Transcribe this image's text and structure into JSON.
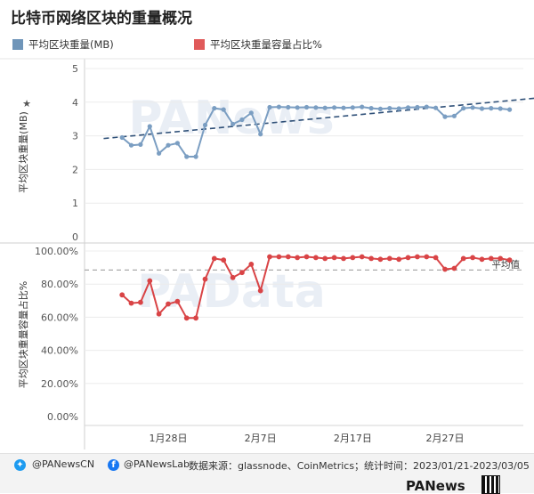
{
  "page": {
    "title": "比特币网络区块的重量概况"
  },
  "legend": [
    {
      "label": "平均区块重量(MB)",
      "color": "#6f95b9"
    },
    {
      "label": "平均区块重量容量占比%",
      "color": "#e05a5a"
    }
  ],
  "colors": {
    "top_series": "#7b9ec2",
    "top_trend": "#2f5078",
    "bottom_series": "#d94446",
    "avg_line": "#aaaaaa"
  },
  "watermarks": {
    "top": "PANews",
    "bottom": "PAData"
  },
  "chart_data": [
    {
      "type": "line",
      "ylabel": "平均区块重量(MB)",
      "ylim": [
        0,
        5
      ],
      "yticks": [
        "0",
        "1",
        "2",
        "3",
        "4",
        "5"
      ],
      "x_start": "2023-01-21",
      "x_end": "2023-03-05",
      "x_ticks": [
        "1月28日",
        "2月7日",
        "2月17日",
        "2月27日"
      ],
      "series": [
        {
          "values": [
            {
              "x": "2023-01-23",
              "y": 2.95
            },
            {
              "x": "2023-01-24",
              "y": 2.72
            },
            {
              "x": "2023-01-25",
              "y": 2.74
            },
            {
              "x": "2023-01-26",
              "y": 3.28
            },
            {
              "x": "2023-01-27",
              "y": 2.48
            },
            {
              "x": "2023-01-28",
              "y": 2.72
            },
            {
              "x": "2023-01-29",
              "y": 2.78
            },
            {
              "x": "2023-01-30",
              "y": 2.38
            },
            {
              "x": "2023-01-31",
              "y": 2.38
            },
            {
              "x": "2023-02-01",
              "y": 3.32
            },
            {
              "x": "2023-02-02",
              "y": 3.82
            },
            {
              "x": "2023-02-03",
              "y": 3.78
            },
            {
              "x": "2023-02-04",
              "y": 3.35
            },
            {
              "x": "2023-02-05",
              "y": 3.48
            },
            {
              "x": "2023-02-06",
              "y": 3.68
            },
            {
              "x": "2023-02-07",
              "y": 3.05
            },
            {
              "x": "2023-02-08",
              "y": 3.85
            },
            {
              "x": "2023-02-09",
              "y": 3.86
            },
            {
              "x": "2023-02-10",
              "y": 3.85
            },
            {
              "x": "2023-02-11",
              "y": 3.84
            },
            {
              "x": "2023-02-12",
              "y": 3.85
            },
            {
              "x": "2023-02-13",
              "y": 3.84
            },
            {
              "x": "2023-02-14",
              "y": 3.83
            },
            {
              "x": "2023-02-15",
              "y": 3.84
            },
            {
              "x": "2023-02-16",
              "y": 3.83
            },
            {
              "x": "2023-02-17",
              "y": 3.84
            },
            {
              "x": "2023-02-18",
              "y": 3.86
            },
            {
              "x": "2023-02-19",
              "y": 3.82
            },
            {
              "x": "2023-02-20",
              "y": 3.8
            },
            {
              "x": "2023-02-21",
              "y": 3.82
            },
            {
              "x": "2023-02-22",
              "y": 3.81
            },
            {
              "x": "2023-02-23",
              "y": 3.84
            },
            {
              "x": "2023-02-24",
              "y": 3.85
            },
            {
              "x": "2023-02-25",
              "y": 3.86
            },
            {
              "x": "2023-02-26",
              "y": 3.83
            },
            {
              "x": "2023-02-27",
              "y": 3.57
            },
            {
              "x": "2023-02-28",
              "y": 3.59
            },
            {
              "x": "2023-03-01",
              "y": 3.82
            },
            {
              "x": "2023-03-02",
              "y": 3.84
            },
            {
              "x": "2023-03-03",
              "y": 3.81
            },
            {
              "x": "2023-03-04",
              "y": 3.82
            },
            {
              "x": "2023-03-05",
              "y": 3.81
            },
            {
              "x": "2023-03-06",
              "y": 3.78
            }
          ]
        }
      ],
      "trendline": {
        "from": {
          "x": "2023-01-21",
          "y": 2.92
        },
        "to": {
          "x": "2023-03-10",
          "y": 4.15
        }
      }
    },
    {
      "type": "line",
      "ylabel": "平均区块重量容量占比%",
      "ylim": [
        0,
        100
      ],
      "yticks": [
        "0.00%",
        "20.00%",
        "40.00%",
        "60.00%",
        "80.00%",
        "100.00%"
      ],
      "x_start": "2023-01-21",
      "x_end": "2023-03-05",
      "x_ticks": [
        "1月28日",
        "2月7日",
        "2月17日",
        "2月27日"
      ],
      "series": [
        {
          "values": [
            {
              "x": "2023-01-23",
              "y": 73.5
            },
            {
              "x": "2023-01-24",
              "y": 68.5
            },
            {
              "x": "2023-01-25",
              "y": 69.0
            },
            {
              "x": "2023-01-26",
              "y": 82.0
            },
            {
              "x": "2023-01-27",
              "y": 62.0
            },
            {
              "x": "2023-01-28",
              "y": 68.0
            },
            {
              "x": "2023-01-29",
              "y": 69.5
            },
            {
              "x": "2023-01-30",
              "y": 59.5
            },
            {
              "x": "2023-01-31",
              "y": 59.5
            },
            {
              "x": "2023-02-01",
              "y": 83.0
            },
            {
              "x": "2023-02-02",
              "y": 95.5
            },
            {
              "x": "2023-02-03",
              "y": 94.5
            },
            {
              "x": "2023-02-04",
              "y": 84.0
            },
            {
              "x": "2023-02-05",
              "y": 87.0
            },
            {
              "x": "2023-02-06",
              "y": 92.0
            },
            {
              "x": "2023-02-07",
              "y": 76.0
            },
            {
              "x": "2023-02-08",
              "y": 96.5
            },
            {
              "x": "2023-02-09",
              "y": 96.5
            },
            {
              "x": "2023-02-10",
              "y": 96.5
            },
            {
              "x": "2023-02-11",
              "y": 96.0
            },
            {
              "x": "2023-02-12",
              "y": 96.5
            },
            {
              "x": "2023-02-13",
              "y": 96.0
            },
            {
              "x": "2023-02-14",
              "y": 95.5
            },
            {
              "x": "2023-02-15",
              "y": 96.0
            },
            {
              "x": "2023-02-16",
              "y": 95.5
            },
            {
              "x": "2023-02-17",
              "y": 96.0
            },
            {
              "x": "2023-02-18",
              "y": 96.5
            },
            {
              "x": "2023-02-19",
              "y": 95.5
            },
            {
              "x": "2023-02-20",
              "y": 95.0
            },
            {
              "x": "2023-02-21",
              "y": 95.5
            },
            {
              "x": "2023-02-22",
              "y": 95.0
            },
            {
              "x": "2023-02-23",
              "y": 96.0
            },
            {
              "x": "2023-02-24",
              "y": 96.5
            },
            {
              "x": "2023-02-25",
              "y": 96.5
            },
            {
              "x": "2023-02-26",
              "y": 96.0
            },
            {
              "x": "2023-02-27",
              "y": 89.0
            },
            {
              "x": "2023-02-28",
              "y": 89.5
            },
            {
              "x": "2023-03-01",
              "y": 95.5
            },
            {
              "x": "2023-03-02",
              "y": 96.0
            },
            {
              "x": "2023-03-03",
              "y": 95.0
            },
            {
              "x": "2023-03-04",
              "y": 95.5
            },
            {
              "x": "2023-03-05",
              "y": 95.5
            },
            {
              "x": "2023-03-06",
              "y": 94.5
            }
          ]
        }
      ],
      "reference_line": {
        "label": "平均值",
        "y": 88.5
      }
    }
  ],
  "footer": {
    "twitter": "@PANewsCN",
    "facebook": "@PANewsLab",
    "source": "数据来源：glassnode、CoinMetrics；统计时间：2023/01/21-2023/03/05",
    "brand": "PANews",
    "twitter_icon": "twitter-bird-icon",
    "facebook_icon": "facebook-f-icon"
  }
}
